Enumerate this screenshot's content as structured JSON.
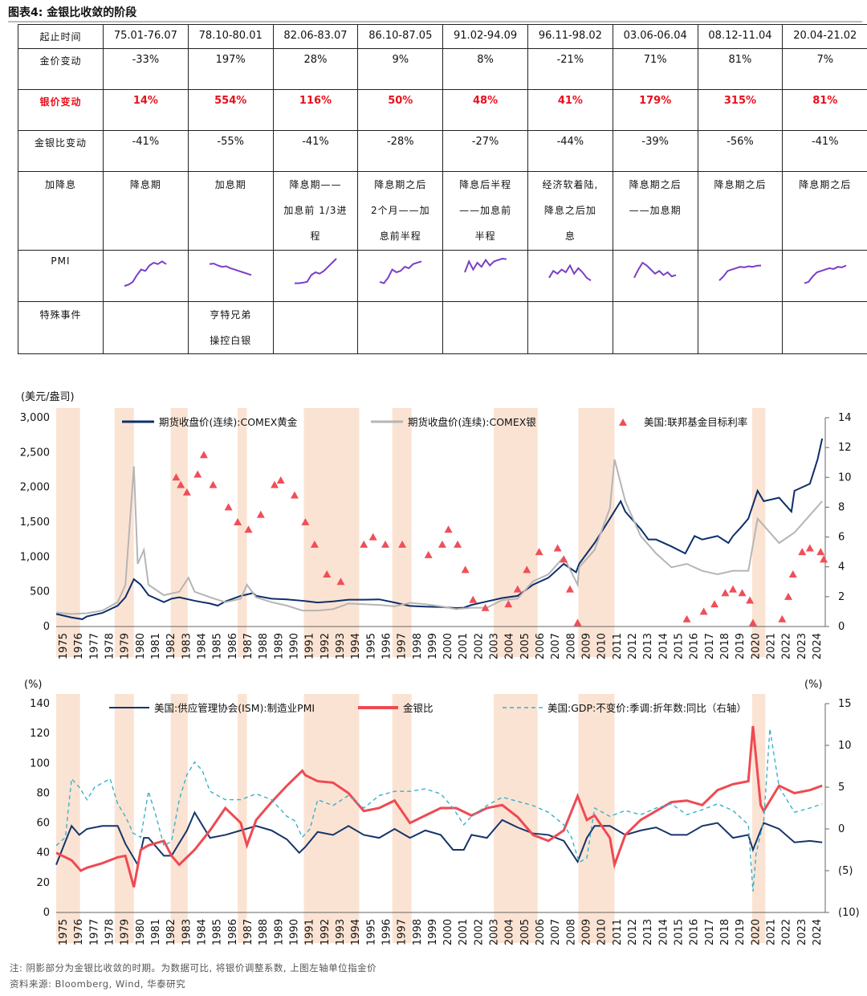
{
  "figure_title": "图表4:   金银比收敛的阶段",
  "table": {
    "columns": [
      "75.01-76.07",
      "78.10-80.01",
      "82.06-83.07",
      "86.10-87.05",
      "91.02-94.09",
      "96.11-98.02",
      "03.06-06.04",
      "08.12-11.04",
      "20.04-21.02"
    ],
    "row_labels": {
      "period": "起止时间",
      "gold": "金价变动",
      "silver": "银价变动",
      "ratio": "金银比变动",
      "rates": "加降息",
      "pmi": "PMI",
      "event": "特殊事件"
    },
    "gold_change": [
      "-33%",
      "197%",
      "28%",
      "9%",
      "8%",
      "-21%",
      "71%",
      "81%",
      "7%"
    ],
    "silver_change": [
      "14%",
      "554%",
      "116%",
      "50%",
      "48%",
      "41%",
      "179%",
      "315%",
      "81%"
    ],
    "ratio_change": [
      "-41%",
      "-55%",
      "-41%",
      "-28%",
      "-27%",
      "-44%",
      "-39%",
      "-56%",
      "-41%"
    ],
    "rate_cycle": [
      [
        "降息期"
      ],
      [
        "加息期"
      ],
      [
        "降息期——",
        "加息前 1/3进",
        "程"
      ],
      [
        "降息期之后",
        "2个月——加",
        "息前半程"
      ],
      [
        "降息后半程",
        "——加息前",
        "半程"
      ],
      [
        "经济软着陆,",
        "降息之后加",
        "息"
      ],
      [
        "降息期之后",
        "——加息期"
      ],
      [
        "降息期之后"
      ],
      [
        "降息期之后"
      ]
    ],
    "special_events": [
      "",
      "亨特兄弟",
      "操控白银"
    ],
    "pmi_color": "#7a3ec6"
  },
  "chart_data": [
    {
      "type": "line",
      "title": "",
      "ylabel": "(美元/盎司)",
      "ylim": [
        0,
        3000
      ],
      "yticks": [
        "0",
        "500",
        "1,000",
        "1,500",
        "2,000",
        "2,500",
        "3,000"
      ],
      "y2lim": [
        0,
        14
      ],
      "y2ticks": [
        "0",
        "2",
        "4",
        "6",
        "8",
        "10",
        "12",
        "14"
      ],
      "xlim": [
        1975,
        2025
      ],
      "x_ticks": [
        "1975",
        "1976",
        "1977",
        "1978",
        "1979",
        "1980",
        "1981",
        "1982",
        "1983",
        "1984",
        "1985",
        "1986",
        "1987",
        "1988",
        "1989",
        "1990",
        "1991",
        "1992",
        "1993",
        "1994",
        "1995",
        "1996",
        "1997",
        "1998",
        "1999",
        "2000",
        "2001",
        "2002",
        "2003",
        "2004",
        "2005",
        "2006",
        "2007",
        "2008",
        "2009",
        "2010",
        "2011",
        "2012",
        "2013",
        "2014",
        "2015",
        "2016",
        "2017",
        "2018",
        "2019",
        "2020",
        "2021",
        "2022",
        "2023",
        "2024"
      ],
      "shaded_periods": [
        [
          1975.0,
          1976.55
        ],
        [
          1978.8,
          1980.05
        ],
        [
          1982.45,
          1983.55
        ],
        [
          1986.8,
          1987.4
        ],
        [
          1991.1,
          1994.7
        ],
        [
          1996.85,
          1998.1
        ],
        [
          2003.45,
          2006.3
        ],
        [
          2008.95,
          2011.3
        ],
        [
          2020.25,
          2021.1
        ]
      ],
      "shade_color": "#fbe3d3",
      "series": [
        {
          "name": "期货收盘价(连续):COMEX黄金",
          "axis": "left",
          "color": "#0d2f6b",
          "x": [
            1975,
            1976,
            1976.7,
            1977,
            1978,
            1979,
            1979.5,
            1980.05,
            1980.5,
            1981,
            1982,
            1982.5,
            1983,
            1984,
            1985,
            1985.5,
            1986,
            1987,
            1987.8,
            1988,
            1989,
            1990,
            1991,
            1992,
            1993,
            1994,
            1995,
            1996,
            1997,
            1998,
            1999,
            2000,
            2001,
            2001.5,
            2002,
            2003,
            2004,
            2005,
            2006,
            2007,
            2008,
            2008.8,
            2009,
            2010,
            2011,
            2011.7,
            2012,
            2013,
            2013.5,
            2014,
            2015,
            2015.9,
            2016.5,
            2017,
            2018,
            2018.7,
            2019,
            2019.5,
            2020,
            2020.6,
            2021,
            2022,
            2022.8,
            2023,
            2024,
            2024.5,
            2024.8
          ],
          "y": [
            180,
            130,
            105,
            145,
            195,
            300,
            420,
            680,
            600,
            450,
            350,
            400,
            420,
            370,
            330,
            300,
            360,
            440,
            480,
            440,
            400,
            390,
            370,
            345,
            360,
            385,
            385,
            390,
            345,
            295,
            285,
            280,
            265,
            270,
            310,
            360,
            410,
            440,
            600,
            700,
            900,
            780,
            900,
            1200,
            1550,
            1800,
            1650,
            1400,
            1250,
            1250,
            1150,
            1050,
            1300,
            1250,
            1300,
            1200,
            1300,
            1420,
            1550,
            1950,
            1800,
            1850,
            1650,
            1950,
            2050,
            2400,
            2700
          ]
        },
        {
          "name": "期货收盘价(连续):COMEX银",
          "axis": "left",
          "color": "#b5b5b5",
          "x": [
            1975,
            1976,
            1977,
            1978,
            1979,
            1979.5,
            1980.05,
            1980.3,
            1980.7,
            1981,
            1982,
            1983,
            1983.6,
            1984,
            1985,
            1986,
            1987,
            1987.4,
            1988,
            1989,
            1990,
            1991,
            1992,
            1993,
            1994,
            1995,
            1996,
            1997,
            1998,
            1999,
            2000,
            2001,
            2002,
            2003,
            2004,
            2005,
            2006,
            2007,
            2008,
            2008.9,
            2009,
            2010,
            2011,
            2011.3,
            2012,
            2013,
            2014,
            2015,
            2016,
            2017,
            2018,
            2019,
            2020,
            2020.6,
            2021,
            2022,
            2023,
            2024,
            2024.8
          ],
          "y": [
            200,
            180,
            190,
            230,
            350,
            600,
            2300,
            900,
            1100,
            600,
            450,
            500,
            700,
            500,
            420,
            350,
            400,
            600,
            420,
            350,
            300,
            230,
            230,
            250,
            330,
            320,
            310,
            290,
            340,
            320,
            290,
            250,
            270,
            270,
            380,
            400,
            650,
            750,
            1000,
            600,
            850,
            1100,
            1700,
            2400,
            1800,
            1300,
            1050,
            850,
            900,
            800,
            750,
            800,
            800,
            1550,
            1450,
            1200,
            1350,
            1600,
            1800
          ]
        },
        {
          "name": "美国:联邦基金目标利率",
          "axis": "right",
          "color": "#f04e58",
          "marker": "triangle",
          "x": [
            1982.8,
            1983.1,
            1983.5,
            1984.2,
            1984.6,
            1985.2,
            1986.2,
            1986.8,
            1987.5,
            1988.3,
            1989.2,
            1989.6,
            1990.5,
            1991.2,
            1991.8,
            1992.6,
            1993.5,
            1995.0,
            1995.6,
            1996.4,
            1997.5,
            1999.2,
            2000.1,
            2000.5,
            2001.1,
            2001.6,
            2002.1,
            2002.9,
            2004.4,
            2005.0,
            2005.6,
            2006.4,
            2007.6,
            2008.0,
            2008.4,
            2008.9,
            2016.0,
            2017.1,
            2017.8,
            2018.5,
            2019.0,
            2019.6,
            2020.1,
            2020.3,
            2022.2,
            2022.6,
            2022.9,
            2023.5,
            2024.0,
            2024.7,
            2024.9
          ],
          "y": [
            10,
            9.5,
            9,
            10.2,
            11.5,
            9.5,
            8,
            7,
            6.5,
            7.5,
            9.5,
            9.8,
            8.8,
            7,
            5.5,
            3.5,
            3,
            5.5,
            6,
            5.5,
            5.5,
            4.8,
            5.5,
            6.5,
            5.5,
            3.8,
            1.8,
            1.25,
            1.5,
            2.5,
            3.8,
            5,
            5.25,
            4.5,
            2.5,
            0.25,
            0.5,
            1,
            1.5,
            2.25,
            2.5,
            2.25,
            1.75,
            0.25,
            0.5,
            2,
            3.5,
            5,
            5.25,
            5,
            4.5
          ]
        }
      ]
    },
    {
      "type": "line",
      "title": "",
      "ylabel": "(%)",
      "ylim": [
        0,
        140
      ],
      "yticks": [
        "0",
        "20",
        "40",
        "60",
        "80",
        "100",
        "120",
        "140"
      ],
      "y2label": "(%)",
      "y2lim": [
        -10,
        15
      ],
      "y2ticks": [
        "(10)",
        "(5)",
        "0",
        "5",
        "10",
        "15"
      ],
      "xlim": [
        1975,
        2025
      ],
      "x_ticks": [
        "1975",
        "1976",
        "1977",
        "1978",
        "1979",
        "1980",
        "1981",
        "1982",
        "1983",
        "1984",
        "1985",
        "1986",
        "1987",
        "1988",
        "1989",
        "1990",
        "1991",
        "1992",
        "1993",
        "1994",
        "1995",
        "1996",
        "1997",
        "1998",
        "1999",
        "2000",
        "2001",
        "2002",
        "2003",
        "2004",
        "2005",
        "2006",
        "2007",
        "2008",
        "2009",
        "2010",
        "2011",
        "2012",
        "2013",
        "2014",
        "2015",
        "2016",
        "2017",
        "2018",
        "2019",
        "2020",
        "2021",
        "2022",
        "2023",
        "2024"
      ],
      "series": [
        {
          "name": "美国:供应管理协会(ISM):制造业PMI",
          "axis": "left",
          "color": "#16356b",
          "x": [
            1975,
            1975.5,
            1976,
            1976.5,
            1977,
            1978,
            1979,
            1979.5,
            1980.3,
            1980.7,
            1981,
            1982,
            1982.5,
            1983.5,
            1984,
            1985,
            1986,
            1987,
            1988,
            1989,
            1990,
            1990.8,
            1991.2,
            1992,
            1993,
            1994,
            1995,
            1996,
            1997,
            1998,
            1999,
            2000,
            2000.8,
            2001.5,
            2002,
            2003,
            2004,
            2005,
            2006,
            2007,
            2008,
            2008.9,
            2009.5,
            2010,
            2011,
            2012,
            2013,
            2014,
            2015,
            2016,
            2017,
            2018,
            2019,
            2020,
            2020.3,
            2020.8,
            2021,
            2022,
            2023,
            2024,
            2024.8
          ],
          "y": [
            32,
            45,
            58,
            52,
            56,
            58,
            58,
            46,
            32,
            50,
            50,
            38,
            38,
            55,
            67,
            50,
            52,
            55,
            58,
            55,
            49,
            40,
            44,
            54,
            52,
            58,
            52,
            50,
            56,
            50,
            55,
            52,
            42,
            42,
            52,
            50,
            62,
            57,
            53,
            52,
            48,
            34,
            50,
            58,
            58,
            52,
            55,
            57,
            52,
            52,
            58,
            60,
            50,
            52,
            42,
            55,
            60,
            56,
            47,
            48,
            47
          ]
        },
        {
          "name": "金银比",
          "axis": "left",
          "color": "#ee4a53",
          "x": [
            1975,
            1976,
            1976.6,
            1977,
            1978,
            1979,
            1979.5,
            1980.05,
            1980.5,
            1981,
            1982,
            1982.5,
            1983,
            1984,
            1985,
            1986,
            1987,
            1987.4,
            1988,
            1989,
            1990,
            1991,
            1991.2,
            1992,
            1993,
            1994,
            1995,
            1996,
            1997,
            1998,
            1999,
            2000,
            2001,
            2002,
            2003,
            2004,
            2005,
            2006,
            2007,
            2008,
            2008.9,
            2009.5,
            2010,
            2011,
            2011.3,
            2012,
            2013,
            2014,
            2015,
            2016,
            2017,
            2018,
            2019,
            2020,
            2020.3,
            2020.8,
            2021,
            2022,
            2023,
            2024,
            2024.8
          ],
          "y": [
            40,
            35,
            28,
            30,
            33,
            37,
            38,
            17,
            42,
            45,
            48,
            38,
            32,
            42,
            55,
            70,
            60,
            45,
            62,
            74,
            85,
            95,
            92,
            88,
            87,
            80,
            68,
            70,
            75,
            60,
            65,
            70,
            70,
            65,
            70,
            72,
            64,
            52,
            48,
            55,
            78,
            62,
            65,
            50,
            32,
            52,
            62,
            68,
            74,
            75,
            72,
            82,
            86,
            88,
            125,
            72,
            68,
            85,
            80,
            82,
            85
          ]
        },
        {
          "name": "美国:GDP:不变价:季调:折年数:同比（右轴）",
          "axis": "right",
          "color": "#36b2cd",
          "dash": true,
          "x": [
            1975,
            1975.6,
            1976,
            1976.5,
            1977,
            1977.5,
            1978,
            1978.5,
            1979,
            1979.5,
            1980,
            1980.5,
            1981,
            1981.5,
            1982,
            1982.5,
            1983,
            1983.5,
            1984,
            1984.5,
            1985,
            1986,
            1987,
            1988,
            1989,
            1990,
            1990.5,
            1991,
            1991.5,
            1992,
            1993,
            1994,
            1995,
            1996,
            1997,
            1998,
            1999,
            2000,
            2000.8,
            2001.5,
            2002,
            2003,
            2004,
            2005,
            2006,
            2007,
            2008,
            2008.5,
            2009,
            2009.5,
            2010,
            2011,
            2012,
            2013,
            2014,
            2015,
            2016,
            2017,
            2018,
            2019,
            2020,
            2020.3,
            2020.5,
            2021,
            2021.4,
            2022,
            2023,
            2024,
            2024.8
          ],
          "y": [
            -2,
            -1,
            6,
            5,
            3.5,
            5,
            5.5,
            6,
            3,
            1.5,
            -0.5,
            -1,
            4.5,
            1.5,
            -2,
            -1.5,
            3.5,
            6.5,
            8,
            7,
            4.5,
            3.5,
            3.5,
            4.2,
            3.5,
            1.5,
            1,
            -1,
            0,
            3.5,
            2.8,
            4,
            2.5,
            4,
            4.5,
            4.5,
            4.8,
            4.2,
            2.5,
            0.5,
            1.5,
            2.8,
            3.8,
            3.3,
            2.8,
            2,
            0.5,
            -1,
            -4,
            -3.5,
            2.5,
            1.5,
            2.2,
            1.7,
            2.5,
            3,
            1.7,
            2.3,
            3,
            2.2,
            0.5,
            -7.5,
            -3,
            1,
            12,
            5,
            2,
            2.5,
            3
          ]
        }
      ]
    }
  ],
  "footer_note": "注:  阴影部分为金银比收敛的时期。为数据可比, 将银价调整系数, 上图左轴单位指金价",
  "footer_source": "资料来源:  Bloomberg, Wind, 华泰研究"
}
